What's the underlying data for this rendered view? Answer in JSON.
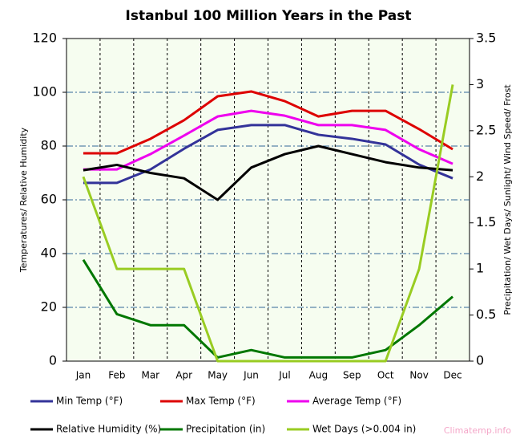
{
  "chart_data": {
    "type": "line",
    "title": "Istanbul 100 Million Years in the Past",
    "y_label": "Temperatures/ Relative Humidity",
    "y2_label": "Precipitation/ Wet Days/ Sunlight/ Wind Speed/ Frost",
    "watermark": "Climatemp.info",
    "categories": [
      "Jan",
      "Feb",
      "Mar",
      "Apr",
      "May",
      "Jun",
      "Jul",
      "Aug",
      "Sep",
      "Oct",
      "Nov",
      "Dec"
    ],
    "ylim": [
      0,
      120
    ],
    "yticks": [
      0,
      20,
      40,
      60,
      80,
      100,
      120
    ],
    "y2lim": [
      0,
      3.5
    ],
    "y2ticks": [
      0,
      0.5,
      1,
      1.5,
      2,
      2.5,
      3,
      3.5
    ],
    "grid": true,
    "series": [
      {
        "name": "Min Temp (°F)",
        "color": "#333399",
        "values": [
          66.3,
          66.3,
          71.3,
          79,
          86,
          87.8,
          87.8,
          84.2,
          82.7,
          80.6,
          73.1,
          68
        ]
      },
      {
        "name": "Max Temp (°F)",
        "color": "#dd0000",
        "values": [
          77.3,
          77.3,
          82.7,
          89.6,
          98.5,
          100.3,
          96.7,
          91,
          93.1,
          93.1,
          86.3,
          78.8
        ]
      },
      {
        "name": "Average Temp (°F)",
        "color": "#ee00ee",
        "values": [
          71.3,
          71.3,
          77,
          83.9,
          91,
          93.1,
          91.3,
          87.8,
          87.8,
          86,
          78.8,
          73.4
        ]
      },
      {
        "name": "Relative Humidity (%)",
        "color": "#000000",
        "values": [
          71,
          73,
          70,
          68,
          60,
          72,
          77,
          80,
          77,
          74,
          72,
          71
        ]
      },
      {
        "name": "Precipitation (in)",
        "color": "#007700",
        "axis": "y2",
        "values": [
          1.1,
          0.51,
          0.39,
          0.39,
          0.04,
          0.12,
          0.04,
          0.04,
          0.04,
          0.12,
          0.39,
          0.7
        ]
      },
      {
        "name": "Wet Days (>0.004 in)",
        "color": "#99cc22",
        "axis": "y2",
        "values": [
          2,
          1,
          1,
          1,
          0,
          0,
          0,
          0,
          0,
          0,
          1,
          3
        ]
      }
    ]
  }
}
